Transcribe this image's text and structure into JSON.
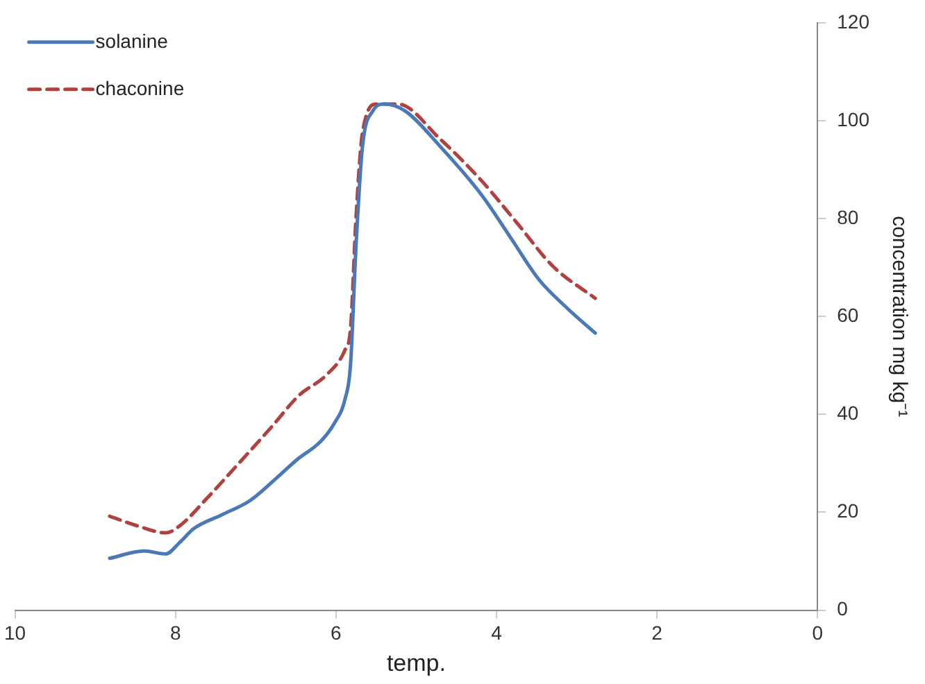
{
  "chart_data": {
    "type": "line",
    "xlabel": "temp.",
    "ylabel": "concentration mg kg⁻¹",
    "xlim": [
      10,
      0
    ],
    "xticks": [
      10,
      8,
      6,
      4,
      2,
      0
    ],
    "ylim": [
      0,
      120
    ],
    "yticks": [
      0,
      20,
      40,
      60,
      80,
      100,
      120
    ],
    "grid": false,
    "legend": "top left",
    "marker": "none",
    "series": [
      {
        "name": "solanine",
        "color": "#4a78b8",
        "line_style": "solid",
        "x": [
          8.82,
          8.39,
          8.12,
          7.95,
          7.77,
          7.42,
          7.07,
          6.72,
          6.49,
          6.19,
          6.02,
          5.89,
          5.82,
          5.75,
          5.67,
          5.54,
          5.4,
          5.14,
          4.7,
          4.18,
          3.82,
          3.47,
          3.12,
          2.77
        ],
        "values": [
          10.6,
          12.1,
          11.5,
          13.8,
          16.7,
          19.5,
          22.4,
          27.3,
          30.7,
          34.5,
          38.2,
          43,
          50,
          74.6,
          94.7,
          102,
          103.4,
          102,
          94.7,
          84.7,
          76,
          67.5,
          61.7,
          56.6
        ]
      },
      {
        "name": "chaconine",
        "color": "#b0413e",
        "line_style": "dashed",
        "x": [
          8.82,
          8.47,
          8.12,
          7.95,
          7.6,
          7.25,
          6.81,
          6.46,
          6.11,
          5.89,
          5.82,
          5.75,
          5.67,
          5.49,
          5.23,
          4.7,
          4.18,
          3.74,
          3.3,
          2.77
        ],
        "values": [
          19.2,
          17.2,
          15.8,
          17.2,
          23,
          29.3,
          37.3,
          43.9,
          48.2,
          53.1,
          57.4,
          80.4,
          97.6,
          103.4,
          103.4,
          96.2,
          87.6,
          79,
          70.3,
          63.7
        ]
      }
    ]
  }
}
